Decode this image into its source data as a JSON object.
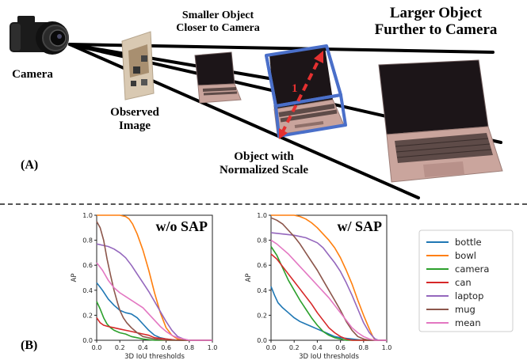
{
  "panel_a": {
    "tag": "(A)",
    "camera_label": "Camera",
    "small_object_label": [
      "Smaller Object",
      "Closer to Camera"
    ],
    "large_object_label": [
      "Larger Object",
      "Further to Camera"
    ],
    "observed_image_label": [
      "Observed",
      "Image"
    ],
    "normalized_label": [
      "Object with",
      "Normalized Scale"
    ],
    "unit_length": "1"
  },
  "panel_b": {
    "tag": "(B)"
  },
  "colors": {
    "bottle": "#1f77b4",
    "bowl": "#ff7f0e",
    "camera": "#2ca02c",
    "can": "#d62728",
    "laptop": "#9467bd",
    "mug": "#8c564b",
    "mean": "#e377c2",
    "normalized_box": "#4a6fc9",
    "diagonal": "#e53030"
  },
  "chart_data": [
    {
      "type": "line",
      "title": "w/o SAP",
      "xlabel": "3D IoU thresholds",
      "ylabel": "AP",
      "xlim": [
        0,
        1
      ],
      "ylim": [
        0,
        1
      ],
      "xticks": [
        "0.0",
        "0.2",
        "0.4",
        "0.6",
        "0.8",
        "1.0"
      ],
      "yticks": [
        "0.0",
        "0.2",
        "0.4",
        "0.6",
        "0.8",
        "1.0"
      ],
      "series": [
        {
          "name": "bottle",
          "points": [
            [
              0,
              0.46
            ],
            [
              0.05,
              0.4
            ],
            [
              0.1,
              0.33
            ],
            [
              0.15,
              0.28
            ],
            [
              0.2,
              0.24
            ],
            [
              0.25,
              0.22
            ],
            [
              0.3,
              0.21
            ],
            [
              0.35,
              0.18
            ],
            [
              0.4,
              0.13
            ],
            [
              0.45,
              0.08
            ],
            [
              0.5,
              0.04
            ],
            [
              0.55,
              0.02
            ],
            [
              0.6,
              0.01
            ],
            [
              0.7,
              0.0
            ],
            [
              1.0,
              0.0
            ]
          ]
        },
        {
          "name": "bowl",
          "points": [
            [
              0,
              1.0
            ],
            [
              0.05,
              1.0
            ],
            [
              0.1,
              1.0
            ],
            [
              0.15,
              1.0
            ],
            [
              0.2,
              1.0
            ],
            [
              0.25,
              0.99
            ],
            [
              0.28,
              0.97
            ],
            [
              0.31,
              0.93
            ],
            [
              0.35,
              0.85
            ],
            [
              0.4,
              0.72
            ],
            [
              0.45,
              0.56
            ],
            [
              0.5,
              0.38
            ],
            [
              0.55,
              0.22
            ],
            [
              0.6,
              0.1
            ],
            [
              0.65,
              0.04
            ],
            [
              0.7,
              0.01
            ],
            [
              0.75,
              0.0
            ],
            [
              1.0,
              0.0
            ]
          ]
        },
        {
          "name": "camera",
          "points": [
            [
              0,
              0.31
            ],
            [
              0.03,
              0.25
            ],
            [
              0.06,
              0.18
            ],
            [
              0.09,
              0.13
            ],
            [
              0.12,
              0.1
            ],
            [
              0.15,
              0.08
            ],
            [
              0.2,
              0.06
            ],
            [
              0.25,
              0.05
            ],
            [
              0.3,
              0.03
            ],
            [
              0.35,
              0.02
            ],
            [
              0.4,
              0.01
            ],
            [
              0.5,
              0.0
            ],
            [
              1.0,
              0.0
            ]
          ]
        },
        {
          "name": "can",
          "points": [
            [
              0,
              0.18
            ],
            [
              0.03,
              0.14
            ],
            [
              0.06,
              0.12
            ],
            [
              0.1,
              0.11
            ],
            [
              0.15,
              0.1
            ],
            [
              0.2,
              0.09
            ],
            [
              0.25,
              0.08
            ],
            [
              0.3,
              0.07
            ],
            [
              0.35,
              0.06
            ],
            [
              0.4,
              0.05
            ],
            [
              0.45,
              0.04
            ],
            [
              0.5,
              0.02
            ],
            [
              0.6,
              0.01
            ],
            [
              0.7,
              0.0
            ],
            [
              1.0,
              0.0
            ]
          ]
        },
        {
          "name": "laptop",
          "points": [
            [
              0,
              0.77
            ],
            [
              0.05,
              0.76
            ],
            [
              0.1,
              0.75
            ],
            [
              0.15,
              0.73
            ],
            [
              0.2,
              0.7
            ],
            [
              0.25,
              0.66
            ],
            [
              0.3,
              0.6
            ],
            [
              0.35,
              0.53
            ],
            [
              0.4,
              0.46
            ],
            [
              0.45,
              0.39
            ],
            [
              0.5,
              0.31
            ],
            [
              0.55,
              0.23
            ],
            [
              0.6,
              0.15
            ],
            [
              0.65,
              0.08
            ],
            [
              0.7,
              0.03
            ],
            [
              0.75,
              0.01
            ],
            [
              0.8,
              0.0
            ],
            [
              1.0,
              0.0
            ]
          ]
        },
        {
          "name": "mug",
          "points": [
            [
              0,
              0.95
            ],
            [
              0.03,
              0.9
            ],
            [
              0.06,
              0.8
            ],
            [
              0.09,
              0.65
            ],
            [
              0.12,
              0.52
            ],
            [
              0.15,
              0.4
            ],
            [
              0.18,
              0.3
            ],
            [
              0.2,
              0.24
            ],
            [
              0.23,
              0.18
            ],
            [
              0.26,
              0.14
            ],
            [
              0.3,
              0.1
            ],
            [
              0.35,
              0.06
            ],
            [
              0.4,
              0.03
            ],
            [
              0.5,
              0.01
            ],
            [
              0.6,
              0.0
            ],
            [
              1.0,
              0.0
            ]
          ]
        },
        {
          "name": "mean",
          "points": [
            [
              0,
              0.62
            ],
            [
              0.05,
              0.56
            ],
            [
              0.1,
              0.48
            ],
            [
              0.15,
              0.42
            ],
            [
              0.2,
              0.38
            ],
            [
              0.25,
              0.35
            ],
            [
              0.3,
              0.32
            ],
            [
              0.35,
              0.29
            ],
            [
              0.4,
              0.26
            ],
            [
              0.45,
              0.21
            ],
            [
              0.5,
              0.16
            ],
            [
              0.55,
              0.11
            ],
            [
              0.6,
              0.07
            ],
            [
              0.65,
              0.04
            ],
            [
              0.7,
              0.02
            ],
            [
              0.75,
              0.01
            ],
            [
              0.8,
              0.0
            ],
            [
              1.0,
              0.0
            ]
          ]
        }
      ]
    },
    {
      "type": "line",
      "title": "w/ SAP",
      "xlabel": "3D IoU thresholds",
      "ylabel": "AP",
      "xlim": [
        0,
        1
      ],
      "ylim": [
        0,
        1
      ],
      "xticks": [
        "0.0",
        "0.2",
        "0.4",
        "0.6",
        "0.8",
        "1.0"
      ],
      "yticks": [
        "0.0",
        "0.2",
        "0.4",
        "0.6",
        "0.8",
        "1.0"
      ],
      "series": [
        {
          "name": "bottle",
          "points": [
            [
              0,
              0.43
            ],
            [
              0.03,
              0.36
            ],
            [
              0.06,
              0.3
            ],
            [
              0.1,
              0.26
            ],
            [
              0.15,
              0.22
            ],
            [
              0.2,
              0.18
            ],
            [
              0.25,
              0.15
            ],
            [
              0.3,
              0.13
            ],
            [
              0.35,
              0.11
            ],
            [
              0.4,
              0.09
            ],
            [
              0.45,
              0.07
            ],
            [
              0.5,
              0.05
            ],
            [
              0.55,
              0.03
            ],
            [
              0.6,
              0.02
            ],
            [
              0.7,
              0.01
            ],
            [
              0.8,
              0.0
            ],
            [
              1.0,
              0.0
            ]
          ]
        },
        {
          "name": "bowl",
          "points": [
            [
              0,
              1.0
            ],
            [
              0.1,
              1.0
            ],
            [
              0.2,
              1.0
            ],
            [
              0.25,
              0.99
            ],
            [
              0.3,
              0.97
            ],
            [
              0.35,
              0.94
            ],
            [
              0.4,
              0.9
            ],
            [
              0.45,
              0.85
            ],
            [
              0.5,
              0.8
            ],
            [
              0.55,
              0.74
            ],
            [
              0.6,
              0.66
            ],
            [
              0.65,
              0.56
            ],
            [
              0.7,
              0.45
            ],
            [
              0.75,
              0.32
            ],
            [
              0.8,
              0.2
            ],
            [
              0.85,
              0.09
            ],
            [
              0.88,
              0.03
            ],
            [
              0.9,
              0.0
            ],
            [
              1.0,
              0.0
            ]
          ]
        },
        {
          "name": "camera",
          "points": [
            [
              0,
              0.75
            ],
            [
              0.05,
              0.68
            ],
            [
              0.1,
              0.58
            ],
            [
              0.15,
              0.48
            ],
            [
              0.2,
              0.4
            ],
            [
              0.25,
              0.32
            ],
            [
              0.3,
              0.25
            ],
            [
              0.35,
              0.18
            ],
            [
              0.4,
              0.12
            ],
            [
              0.45,
              0.07
            ],
            [
              0.5,
              0.04
            ],
            [
              0.55,
              0.02
            ],
            [
              0.6,
              0.01
            ],
            [
              0.65,
              0.0
            ],
            [
              1.0,
              0.0
            ]
          ]
        },
        {
          "name": "can",
          "points": [
            [
              0,
              0.69
            ],
            [
              0.05,
              0.65
            ],
            [
              0.1,
              0.59
            ],
            [
              0.15,
              0.53
            ],
            [
              0.2,
              0.47
            ],
            [
              0.25,
              0.41
            ],
            [
              0.3,
              0.35
            ],
            [
              0.35,
              0.29
            ],
            [
              0.4,
              0.22
            ],
            [
              0.45,
              0.16
            ],
            [
              0.5,
              0.1
            ],
            [
              0.55,
              0.06
            ],
            [
              0.6,
              0.03
            ],
            [
              0.65,
              0.01
            ],
            [
              0.7,
              0.0
            ],
            [
              1.0,
              0.0
            ]
          ]
        },
        {
          "name": "laptop",
          "points": [
            [
              0,
              0.86
            ],
            [
              0.1,
              0.85
            ],
            [
              0.2,
              0.84
            ],
            [
              0.3,
              0.82
            ],
            [
              0.4,
              0.78
            ],
            [
              0.45,
              0.74
            ],
            [
              0.5,
              0.68
            ],
            [
              0.55,
              0.62
            ],
            [
              0.6,
              0.55
            ],
            [
              0.65,
              0.46
            ],
            [
              0.7,
              0.36
            ],
            [
              0.75,
              0.25
            ],
            [
              0.8,
              0.14
            ],
            [
              0.85,
              0.06
            ],
            [
              0.9,
              0.01
            ],
            [
              0.93,
              0.0
            ],
            [
              1.0,
              0.0
            ]
          ]
        },
        {
          "name": "mug",
          "points": [
            [
              0,
              0.98
            ],
            [
              0.05,
              0.96
            ],
            [
              0.1,
              0.93
            ],
            [
              0.15,
              0.88
            ],
            [
              0.2,
              0.83
            ],
            [
              0.25,
              0.77
            ],
            [
              0.3,
              0.7
            ],
            [
              0.35,
              0.63
            ],
            [
              0.4,
              0.56
            ],
            [
              0.45,
              0.48
            ],
            [
              0.5,
              0.4
            ],
            [
              0.55,
              0.32
            ],
            [
              0.6,
              0.24
            ],
            [
              0.65,
              0.15
            ],
            [
              0.7,
              0.08
            ],
            [
              0.75,
              0.03
            ],
            [
              0.8,
              0.01
            ],
            [
              0.85,
              0.0
            ],
            [
              1.0,
              0.0
            ]
          ]
        },
        {
          "name": "mean",
          "points": [
            [
              0,
              0.8
            ],
            [
              0.05,
              0.77
            ],
            [
              0.1,
              0.73
            ],
            [
              0.15,
              0.69
            ],
            [
              0.2,
              0.64
            ],
            [
              0.25,
              0.59
            ],
            [
              0.3,
              0.54
            ],
            [
              0.35,
              0.49
            ],
            [
              0.4,
              0.44
            ],
            [
              0.45,
              0.39
            ],
            [
              0.5,
              0.34
            ],
            [
              0.55,
              0.28
            ],
            [
              0.6,
              0.22
            ],
            [
              0.65,
              0.16
            ],
            [
              0.7,
              0.1
            ],
            [
              0.75,
              0.06
            ],
            [
              0.8,
              0.03
            ],
            [
              0.85,
              0.01
            ],
            [
              0.9,
              0.0
            ],
            [
              1.0,
              0.0
            ]
          ]
        }
      ]
    }
  ],
  "legend": [
    "bottle",
    "bowl",
    "camera",
    "can",
    "laptop",
    "mug",
    "mean"
  ]
}
